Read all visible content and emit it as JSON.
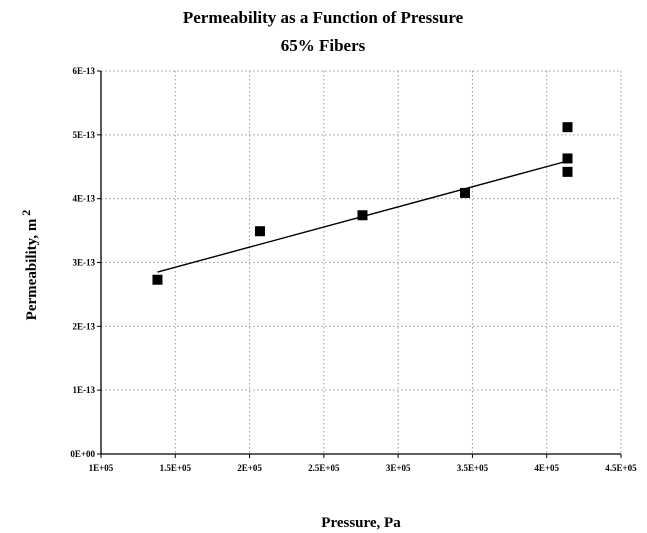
{
  "chart_data": {
    "type": "scatter",
    "title": "Permeability as a Function of Pressure",
    "subtitle": "65% Fibers",
    "xlabel": "Pressure, Pa",
    "ylabel": "Permeability, m",
    "ylabel_superscript": "2",
    "xlim": [
      100000,
      450000
    ],
    "ylim": [
      0,
      6e-13
    ],
    "xticks": [
      100000,
      150000,
      200000,
      250000,
      300000,
      350000,
      400000,
      450000
    ],
    "xtick_labels": [
      "1E+05",
      "1.5E+05",
      "2E+05",
      "2.5E+05",
      "3E+05",
      "3.5E+05",
      "4E+05",
      "4.5E+05"
    ],
    "yticks": [
      0,
      1e-13,
      2e-13,
      3e-13,
      4e-13,
      5e-13,
      6e-13
    ],
    "ytick_labels": [
      "0E+00",
      "1E-13",
      "2E-13",
      "3E-13",
      "4E-13",
      "5E-13",
      "6E-13"
    ],
    "grid": true,
    "points": [
      {
        "x": 138000,
        "y": 2.73e-13
      },
      {
        "x": 207000,
        "y": 3.49e-13
      },
      {
        "x": 276000,
        "y": 3.74e-13
      },
      {
        "x": 345000,
        "y": 4.09e-13
      },
      {
        "x": 414000,
        "y": 4.42e-13
      },
      {
        "x": 414000,
        "y": 4.63e-13
      },
      {
        "x": 414000,
        "y": 5.12e-13
      }
    ],
    "trendline": {
      "type": "linear",
      "x": [
        138000,
        414000
      ],
      "y": [
        2.85e-13,
        4.59e-13
      ]
    }
  }
}
